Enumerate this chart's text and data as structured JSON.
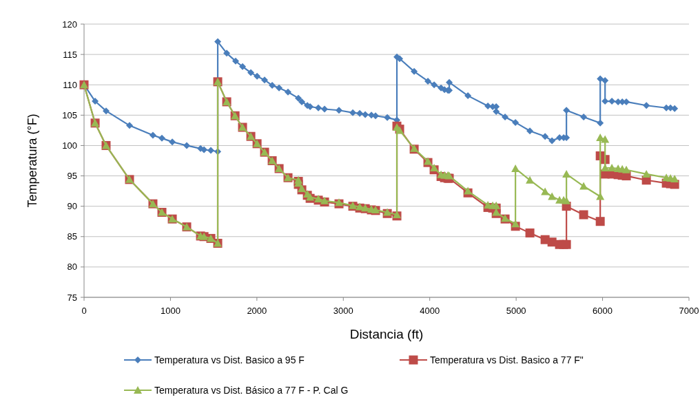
{
  "chart_data": {
    "type": "line",
    "xlabel": "Distancia  (ft)",
    "ylabel": "Temperatura (°F)",
    "xlim": [
      0,
      7000
    ],
    "xticks": [
      0,
      1000,
      2000,
      3000,
      4000,
      5000,
      6000,
      7000
    ],
    "ylim": [
      75,
      120
    ],
    "yticks": [
      75,
      80,
      85,
      90,
      95,
      100,
      105,
      110,
      115,
      120
    ],
    "grid": "y",
    "legend": "bottom",
    "line_style": "solid",
    "series": [
      {
        "name": "Temperatura vs Dist. Basico a 95 F",
        "color": "#4a7ebb",
        "marker": "diamond",
        "x": [
          0,
          128,
          255,
          526,
          797,
          901,
          1021,
          1188,
          1348,
          1388,
          1467,
          1547,
          1547,
          1651,
          1754,
          1834,
          1930,
          2002,
          2089,
          2177,
          2257,
          2360,
          2480,
          2520,
          2584,
          2616,
          2711,
          2783,
          2950,
          3110,
          3190,
          3254,
          3325,
          3373,
          3509,
          3620,
          3620,
          3652,
          3820,
          3979,
          4051,
          4131,
          4171,
          4211,
          4226,
          4226,
          4442,
          4673,
          4729,
          4769,
          4769,
          4872,
          4992,
          5159,
          5335,
          5415,
          5502,
          5550,
          5582,
          5582,
          5781,
          5973,
          5973,
          6029,
          6029,
          6108,
          6180,
          6228,
          6275,
          6507,
          6738,
          6786,
          6834
        ],
        "values": [
          110,
          107.3,
          105.7,
          103.3,
          101.7,
          101.2,
          100.6,
          100,
          99.5,
          99.3,
          99.2,
          99,
          117.1,
          115.2,
          113.9,
          113,
          112,
          111.4,
          110.8,
          109.9,
          109.5,
          108.8,
          107.8,
          107.2,
          106.6,
          106.4,
          106.2,
          106,
          105.8,
          105.4,
          105.3,
          105.1,
          105,
          104.9,
          104.6,
          104.2,
          114.6,
          114.3,
          112.2,
          110.6,
          110,
          109.5,
          109.2,
          109.1,
          109.1,
          110.4,
          108.2,
          106.5,
          106.4,
          106.4,
          105.6,
          104.7,
          103.8,
          102.4,
          101.5,
          100.8,
          101.3,
          101.3,
          101.3,
          105.8,
          104.7,
          103.7,
          111,
          110.7,
          107.3,
          107.3,
          107.2,
          107.2,
          107.2,
          106.6,
          106.2,
          106.2,
          106.1
        ]
      },
      {
        "name": "Temperatura vs Dist. Basico a 77 F\"",
        "color": "#be4b48",
        "marker": "square",
        "x": [
          0,
          128,
          255,
          526,
          797,
          901,
          1021,
          1188,
          1348,
          1388,
          1467,
          1547,
          1547,
          1651,
          1747,
          1834,
          1930,
          2002,
          2089,
          2177,
          2257,
          2360,
          2480,
          2480,
          2520,
          2584,
          2616,
          2711,
          2783,
          2950,
          3110,
          3190,
          3254,
          3325,
          3373,
          3509,
          3620,
          3620,
          3652,
          3820,
          3979,
          4051,
          4131,
          4171,
          4211,
          4226,
          4442,
          4673,
          4729,
          4769,
          4769,
          4872,
          4992,
          5159,
          5335,
          5415,
          5502,
          5550,
          5582,
          5582,
          5781,
          5973,
          5973,
          6029,
          6029,
          6108,
          6180,
          6228,
          6275,
          6507,
          6738,
          6786,
          6834
        ],
        "values": [
          110,
          103.7,
          100,
          94.4,
          90.4,
          89,
          87.9,
          86.6,
          85.1,
          85,
          84.7,
          83.9,
          110.5,
          107.2,
          104.9,
          103,
          101.5,
          100.3,
          98.9,
          97.5,
          96.2,
          94.7,
          94.1,
          93.6,
          92.7,
          91.8,
          91.3,
          91,
          90.7,
          90.4,
          90,
          89.7,
          89.6,
          89.4,
          89.3,
          88.8,
          88.4,
          103.2,
          102.7,
          99.4,
          97.2,
          96,
          94.9,
          94.7,
          94.6,
          94.6,
          92.2,
          89.8,
          89.7,
          89.7,
          88.8,
          87.9,
          86.7,
          85.6,
          84.5,
          84.1,
          83.7,
          83.7,
          83.7,
          90,
          88.6,
          87.5,
          98.3,
          97.7,
          95.3,
          95.3,
          95.2,
          95.1,
          95,
          94.3,
          93.8,
          93.7,
          93.6
        ]
      },
      {
        "name": "Temperatura vs Dist. Básico a 77 F - P. Cal G",
        "color": "#98b954",
        "marker": "triangle",
        "x": [
          0,
          128,
          255,
          526,
          797,
          901,
          1021,
          1188,
          1348,
          1388,
          1467,
          1547,
          1547,
          1651,
          1747,
          1834,
          1930,
          2002,
          2089,
          2177,
          2257,
          2360,
          2480,
          2480,
          2520,
          2584,
          2616,
          2711,
          2783,
          2950,
          3110,
          3190,
          3254,
          3325,
          3373,
          3509,
          3620,
          3620,
          3652,
          3820,
          3979,
          4051,
          4131,
          4171,
          4211,
          4226,
          4442,
          4673,
          4729,
          4769,
          4769,
          4872,
          4992,
          4992,
          5159,
          5335,
          5415,
          5502,
          5550,
          5582,
          5582,
          5781,
          5973,
          5973,
          6029,
          6029,
          6108,
          6180,
          6228,
          6275,
          6507,
          6738,
          6786,
          6834
        ],
        "values": [
          110,
          103.7,
          100,
          94.4,
          90.4,
          89,
          87.9,
          86.6,
          85.1,
          85,
          84.7,
          83.9,
          110.5,
          107.2,
          104.9,
          103,
          101.5,
          100.3,
          98.9,
          97.5,
          96.2,
          94.7,
          94.3,
          93.8,
          92.9,
          92,
          91.5,
          91.2,
          90.9,
          90.6,
          90.1,
          89.9,
          89.7,
          89.5,
          89.4,
          89,
          88.6,
          103,
          102.5,
          99.5,
          97.4,
          96.3,
          95.2,
          95.1,
          95.1,
          95,
          92.5,
          90.2,
          90.1,
          90.1,
          89,
          88,
          87.1,
          96.2,
          94.3,
          92.4,
          91.6,
          91,
          91,
          90.9,
          95.3,
          93.3,
          91.6,
          101.3,
          101,
          96.3,
          96.3,
          96.2,
          96.1,
          96,
          95.3,
          94.7,
          94.6,
          94.5
        ]
      }
    ]
  }
}
